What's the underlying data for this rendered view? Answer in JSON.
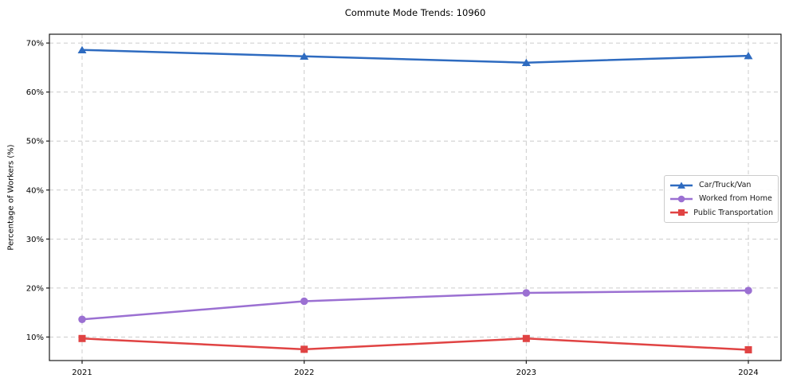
{
  "chart_data": {
    "type": "line",
    "title": "Commute Mode Trends: 10960",
    "ylabel": "Percentage of Workers (%)",
    "xlabel": "",
    "categories": [
      "2021",
      "2022",
      "2023",
      "2024"
    ],
    "series": [
      {
        "name": "Car/Truck/Van",
        "color": "#2e6bc0",
        "marker": "triangle",
        "values": [
          68.6,
          67.3,
          66.0,
          67.4
        ]
      },
      {
        "name": "Worked from Home",
        "color": "#9b70d2",
        "marker": "circle",
        "values": [
          13.6,
          17.3,
          19.0,
          19.5
        ]
      },
      {
        "name": "Public Transportation",
        "color": "#e04343",
        "marker": "square",
        "values": [
          9.7,
          7.5,
          9.7,
          7.4
        ]
      }
    ],
    "yticks": [
      10,
      20,
      30,
      40,
      50,
      60,
      70
    ],
    "ytick_suffix": "%",
    "ylim": [
      5.2,
      71.8
    ],
    "grid": {
      "show": true,
      "style": "dashed",
      "color": "#cccccc"
    },
    "legend": {
      "position": "center-right",
      "entries": [
        "Car/Truck/Van",
        "Worked from Home",
        "Public Transportation"
      ]
    },
    "colors": {
      "spine": "#1a1a1a",
      "background": "#ffffff"
    }
  }
}
